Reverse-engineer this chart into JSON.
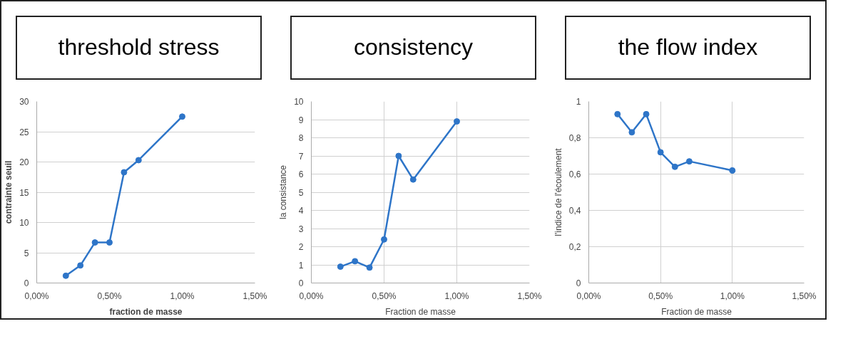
{
  "chart_data": [
    {
      "type": "line",
      "title": "threshold stress",
      "xlabel": "fraction de masse",
      "ylabel": "contrainte seuil",
      "x": [
        0.2,
        0.3,
        0.4,
        0.5,
        0.6,
        0.7,
        1.0
      ],
      "series": [
        {
          "color": "#2e75c8",
          "values": [
            1.2,
            2.9,
            6.7,
            6.7,
            18.3,
            20.3,
            27.5
          ]
        }
      ],
      "xlim": [
        0,
        1.5
      ],
      "xticks": [
        {
          "value": 0,
          "label": "0,00%"
        },
        {
          "value": 0.5,
          "label": "0,50%"
        },
        {
          "value": 1.0,
          "label": "1,00%"
        },
        {
          "value": 1.5,
          "label": "1,50%"
        }
      ],
      "ylim": [
        0,
        30
      ],
      "yticks": [
        0,
        5,
        10,
        15,
        20,
        25,
        30
      ],
      "grid": "y",
      "marker": "circle",
      "line_style": "solid"
    },
    {
      "type": "line",
      "title": "consistency",
      "xlabel": "Fraction de masse",
      "ylabel": "la consistance",
      "x": [
        0.2,
        0.3,
        0.4,
        0.5,
        0.6,
        0.7,
        1.0
      ],
      "series": [
        {
          "color": "#2e75c8",
          "values": [
            0.9,
            1.2,
            0.85,
            2.4,
            7.0,
            5.7,
            8.9
          ]
        }
      ],
      "xlim": [
        0,
        1.5
      ],
      "xticks": [
        {
          "value": 0,
          "label": "0,00%"
        },
        {
          "value": 0.5,
          "label": "0,50%"
        },
        {
          "value": 1.0,
          "label": "1,00%"
        },
        {
          "value": 1.5,
          "label": "1,50%"
        }
      ],
      "ylim": [
        0,
        10
      ],
      "yticks": [
        0,
        1,
        2,
        3,
        4,
        5,
        6,
        7,
        8,
        9,
        10
      ],
      "grid": true,
      "marker": "circle",
      "line_style": "solid"
    },
    {
      "type": "line",
      "title": "the flow index",
      "xlabel": "Fraction de masse",
      "ylabel": "l'indice de l'écoulement",
      "x": [
        0.2,
        0.3,
        0.4,
        0.5,
        0.6,
        0.7,
        1.0
      ],
      "series": [
        {
          "color": "#2e75c8",
          "values": [
            0.93,
            0.83,
            0.93,
            0.72,
            0.64,
            0.67,
            0.62
          ]
        }
      ],
      "xlim": [
        0,
        1.5
      ],
      "xticks": [
        {
          "value": 0,
          "label": "0,00%"
        },
        {
          "value": 0.5,
          "label": "0,50%"
        },
        {
          "value": 1.0,
          "label": "1,00%"
        },
        {
          "value": 1.5,
          "label": "1,50%"
        }
      ],
      "ylim": [
        0,
        1
      ],
      "yticks": [
        0,
        {
          "value": 0.2,
          "label": "0,2"
        },
        {
          "value": 0.4,
          "label": "0,4"
        },
        {
          "value": 0.6,
          "label": "0,6"
        },
        {
          "value": 0.8,
          "label": "0,8"
        },
        1
      ],
      "grid": true,
      "marker": "circle",
      "line_style": "solid"
    }
  ]
}
